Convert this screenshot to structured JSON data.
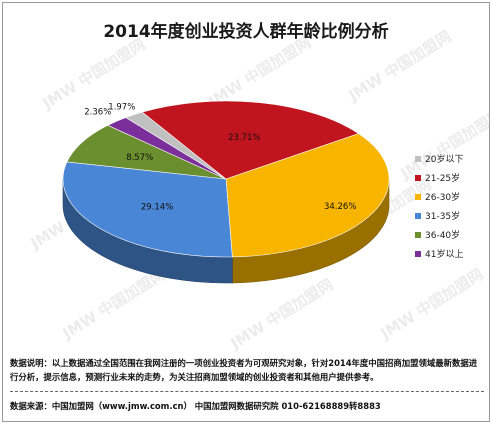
{
  "chart_data": {
    "type": "pie",
    "title": "2014年度创业投资人群年龄比例分析",
    "categories": [
      "20岁以下",
      "21-25岁",
      "26-30岁",
      "31-35岁",
      "36-40岁",
      "41岁以上"
    ],
    "values": [
      1.97,
      23.71,
      34.26,
      29.14,
      8.57,
      2.36
    ],
    "value_labels": [
      "1.97%",
      "23.71%",
      "34.26%",
      "29.14%",
      "8.57%",
      "2.36%"
    ],
    "colors": [
      "#c0c0c0",
      "#c0141e",
      "#f7b500",
      "#4a86d6",
      "#6b8e2f",
      "#7b2f9a"
    ],
    "legend_position": "right",
    "style": "3d-pie"
  },
  "watermark": "JMW 中国加盟网",
  "footer": {
    "note": "数据说明：以上数据通过全国范围在我网注册的一项创业投资者为可观研究对象，针对2014年度中国招商加盟领域最新数据进行分析，提示信息，预测行业未来的走势，为关注招商加盟领域的创业投资者和其他用户提供参考。",
    "source": "数据来源：中国加盟网（www.jmw.com.cn）    中国加盟网数据研究院    010-62168889转8883"
  }
}
